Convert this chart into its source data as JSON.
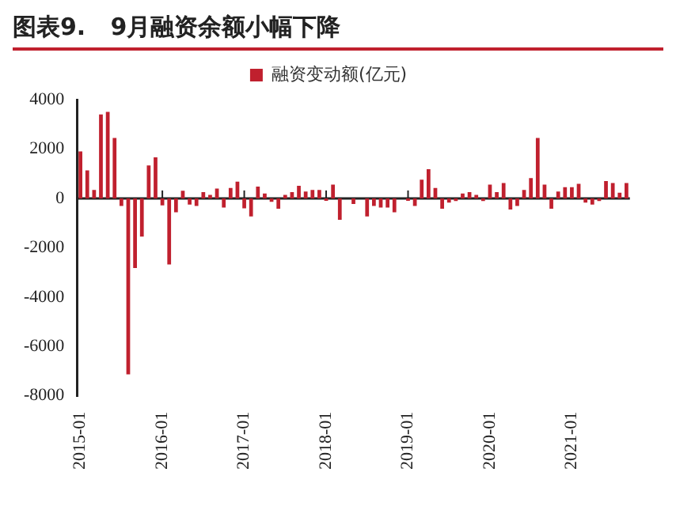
{
  "chart_data": {
    "type": "bar",
    "title": "图表9.   9月融资余额小幅下降",
    "categories": [
      "2015-01",
      null,
      null,
      null,
      null,
      null,
      null,
      null,
      null,
      null,
      null,
      null,
      "2016-01",
      null,
      null,
      null,
      null,
      null,
      null,
      null,
      null,
      null,
      null,
      null,
      "2017-01",
      null,
      null,
      null,
      null,
      null,
      null,
      null,
      null,
      null,
      null,
      null,
      "2018-01",
      null,
      null,
      null,
      null,
      null,
      null,
      null,
      null,
      null,
      null,
      null,
      "2019-01",
      null,
      null,
      null,
      null,
      null,
      null,
      null,
      null,
      null,
      null,
      null,
      "2020-01",
      null,
      null,
      null,
      null,
      null,
      null,
      null,
      null,
      null,
      null,
      null,
      "2021-01",
      null,
      null,
      null,
      null,
      null,
      null,
      null,
      null
    ],
    "series": [
      {
        "name": "融资变动额(亿元)",
        "color": "#c0202e",
        "values": [
          1900,
          1130,
          340,
          3400,
          3500,
          2450,
          -310,
          -7130,
          -2820,
          -1550,
          1330,
          1660,
          -280,
          -2680,
          -560,
          310,
          -250,
          -310,
          250,
          140,
          400,
          -370,
          420,
          680,
          -400,
          -730,
          480,
          200,
          -140,
          -420,
          140,
          250,
          510,
          280,
          340,
          340,
          -100,
          560,
          -870,
          0,
          -230,
          0,
          -730,
          -310,
          -370,
          -370,
          -560,
          0,
          -100,
          -310,
          760,
          1180,
          420,
          -420,
          -170,
          -110,
          200,
          250,
          140,
          -110,
          560,
          250,
          620,
          -450,
          -310,
          340,
          820,
          2450,
          560,
          -420,
          280,
          450,
          450,
          590,
          -170,
          -250,
          -110,
          700,
          620,
          230,
          620
        ]
      }
    ],
    "ylim": [
      -8000,
      4000
    ],
    "yticks": [
      -8000,
      -6000,
      -4000,
      -2000,
      0,
      2000,
      4000
    ],
    "legend": "top"
  }
}
